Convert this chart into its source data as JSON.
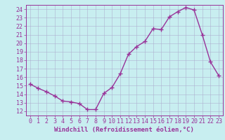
{
  "x": [
    0,
    1,
    2,
    3,
    4,
    5,
    6,
    7,
    8,
    9,
    10,
    11,
    12,
    13,
    14,
    15,
    16,
    17,
    18,
    19,
    20,
    21,
    22,
    23
  ],
  "y": [
    15.2,
    14.7,
    14.3,
    13.8,
    13.2,
    13.1,
    12.9,
    12.2,
    12.2,
    14.1,
    14.8,
    16.4,
    18.7,
    19.6,
    20.2,
    21.7,
    21.6,
    23.1,
    23.7,
    24.2,
    23.9,
    21.0,
    17.8,
    16.2
  ],
  "line_color": "#993399",
  "marker": "+",
  "markersize": 4,
  "linewidth": 1.0,
  "xlabel": "Windchill (Refroidissement éolien,°C)",
  "ylim": [
    11.5,
    24.5
  ],
  "xlim": [
    -0.5,
    23.5
  ],
  "yticks": [
    12,
    13,
    14,
    15,
    16,
    17,
    18,
    19,
    20,
    21,
    22,
    23,
    24
  ],
  "xticks": [
    0,
    1,
    2,
    3,
    4,
    5,
    6,
    7,
    8,
    9,
    10,
    11,
    12,
    13,
    14,
    15,
    16,
    17,
    18,
    19,
    20,
    21,
    22,
    23
  ],
  "background_color": "#c8eef0",
  "grid_color": "#aaaacc",
  "line_bg": "#c8eef0",
  "tick_color": "#993399",
  "label_color": "#993399",
  "xlabel_fontsize": 6.5,
  "tick_fontsize": 6,
  "spine_color": "#993399"
}
